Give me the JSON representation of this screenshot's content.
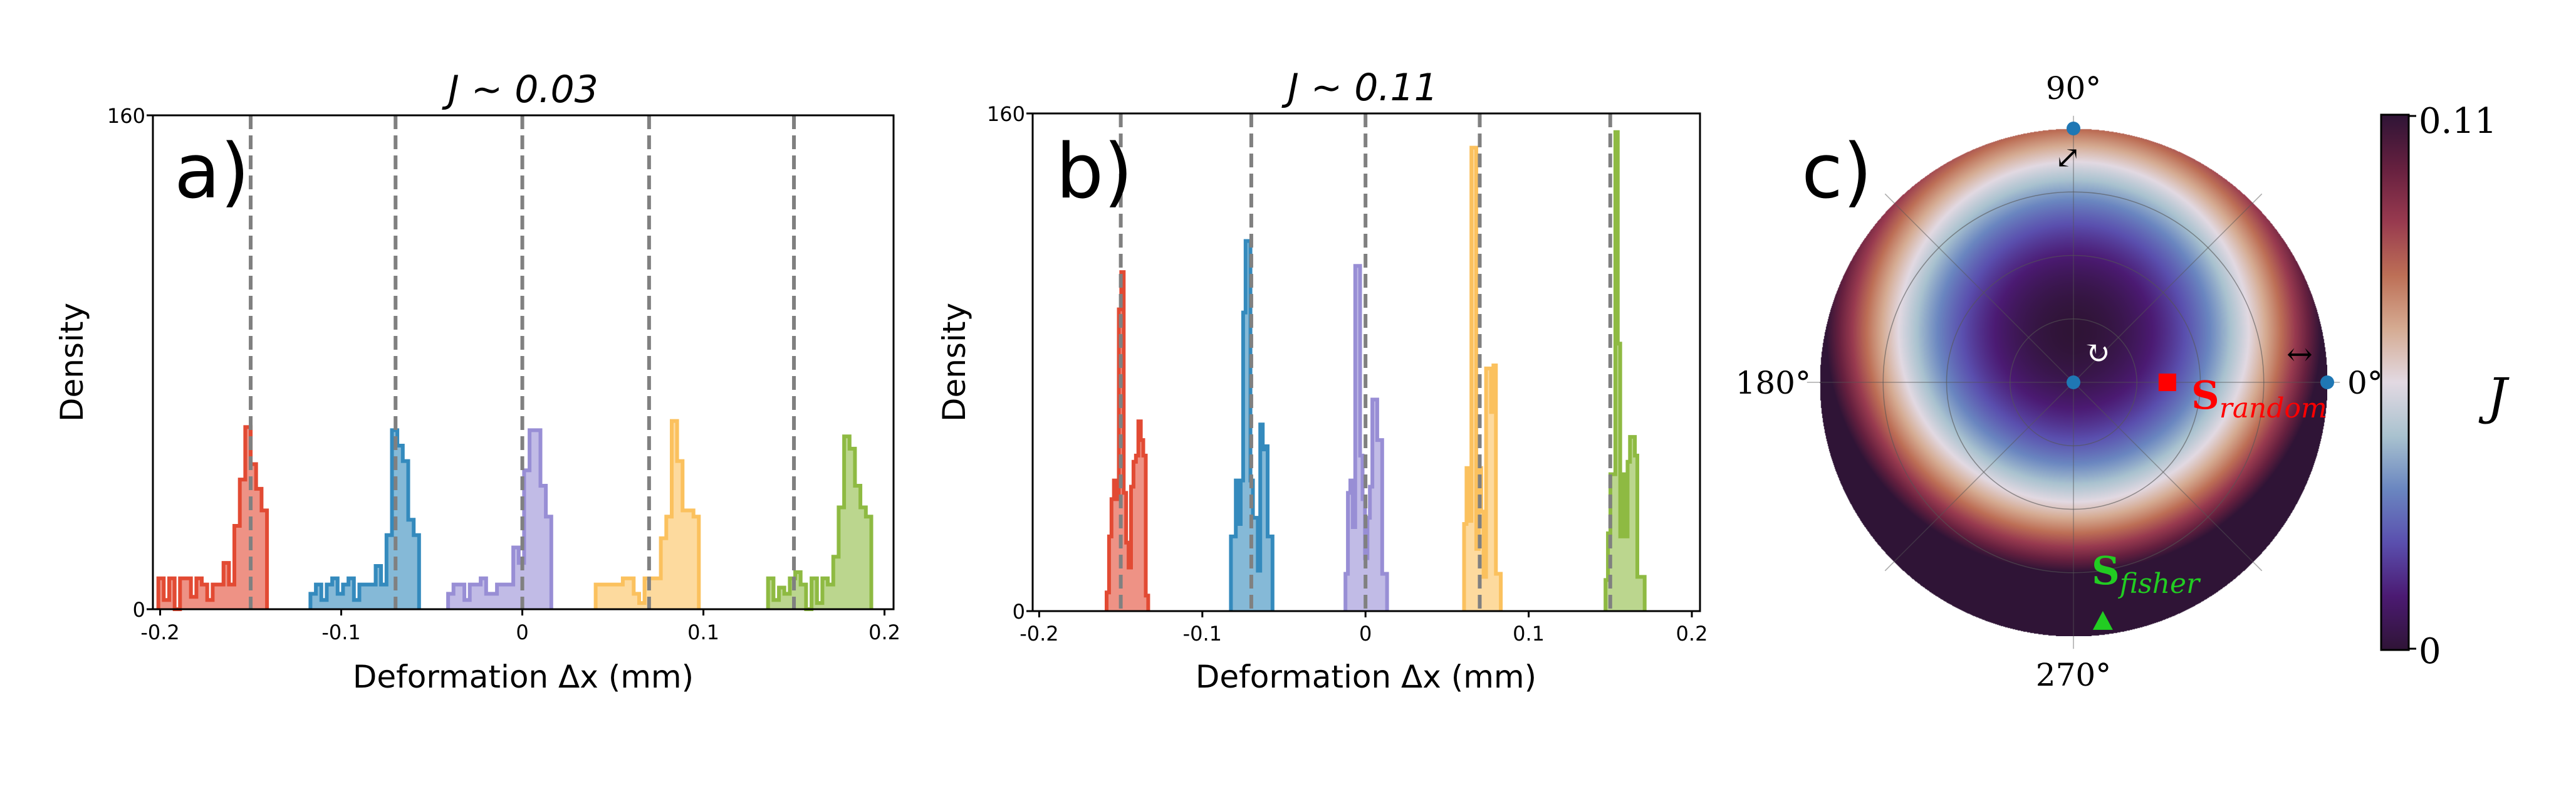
{
  "chart_data": [
    {
      "type": "histogram",
      "panel_label": "a)",
      "title": "J ∼ 0.03",
      "xlabel": "Deformation Δx (mm)",
      "ylabel": "Density",
      "xlim": [
        -0.204,
        0.205
      ],
      "ylim": [
        0,
        160
      ],
      "xticks": [
        -0.2,
        -0.1,
        0,
        0.1,
        0.2
      ],
      "xtick_labels": [
        "-0.2",
        "-0.1",
        "0",
        "0.1",
        "0.2"
      ],
      "yticks": [
        0,
        160
      ],
      "ytick_labels": [
        "0",
        "160"
      ],
      "reference_lines": [
        -0.15,
        -0.07,
        0,
        0.07,
        0.15
      ],
      "reference_line_color": "#808080",
      "bin_width": 0.003,
      "series": [
        {
          "color": "#e24a33",
          "start": -0.201,
          "heights": [
            10,
            3,
            10,
            0,
            10,
            10,
            4,
            10,
            8,
            3,
            8,
            8,
            15,
            8,
            27,
            42,
            59,
            47,
            39,
            32
          ]
        },
        {
          "color": "#348abd",
          "start": -0.117,
          "heights": [
            5,
            8,
            3,
            8,
            10,
            5,
            8,
            10,
            3,
            8,
            8,
            8,
            14,
            8,
            24,
            58,
            53,
            48,
            29,
            24
          ]
        },
        {
          "color": "#988ed5",
          "start": -0.041,
          "heights": [
            5,
            8,
            8,
            3,
            8,
            8,
            10,
            5,
            5,
            8,
            8,
            8,
            20,
            15,
            45,
            58,
            58,
            40,
            30
          ]
        },
        {
          "color": "#fbc15e",
          "start": 0.0405,
          "heights": [
            8,
            8,
            8,
            8,
            8,
            10,
            10,
            5,
            2,
            10,
            10,
            10,
            23,
            30,
            61,
            48,
            32,
            32,
            30
          ]
        },
        {
          "color": "#8eba42",
          "start": 0.1357,
          "heights": [
            10,
            3,
            7,
            5,
            10,
            12,
            8,
            0,
            10,
            2,
            10,
            8,
            17,
            33,
            56,
            52,
            40,
            33,
            30
          ]
        }
      ]
    },
    {
      "type": "histogram",
      "panel_label": "b)",
      "title": "J ∼ 0.11",
      "xlabel": "Deformation Δx (mm)",
      "ylabel": "Density",
      "xlim": [
        -0.204,
        0.205
      ],
      "ylim": [
        0,
        160
      ],
      "xticks": [
        -0.2,
        -0.1,
        0,
        0.1,
        0.2
      ],
      "xtick_labels": [
        "-0.2",
        "-0.1",
        "0",
        "0.1",
        "0.2"
      ],
      "yticks": [
        0,
        160
      ],
      "ytick_labels": [
        "0",
        "160"
      ],
      "reference_lines": [
        -0.15,
        -0.07,
        0,
        0.07,
        0.15
      ],
      "reference_line_color": "#808080",
      "bin_width": 0.0015,
      "series": [
        {
          "color": "#e24a33",
          "start": -0.1587,
          "heights": [
            6,
            24,
            36,
            42,
            36,
            97,
            109,
            38,
            22,
            14,
            40,
            48,
            50,
            61,
            55,
            50,
            5
          ]
        },
        {
          "color": "#348abd",
          "start": -0.0825,
          "heights": [
            24,
            24,
            42,
            28,
            42,
            96,
            119,
            119,
            42,
            30,
            30,
            13,
            60,
            52,
            53,
            24,
            24
          ]
        },
        {
          "color": "#988ed5",
          "start": -0.0123,
          "heights": [
            12,
            38,
            42,
            27,
            111,
            111,
            50,
            36,
            17,
            30,
            40,
            68,
            68,
            55,
            55,
            12,
            12
          ]
        },
        {
          "color": "#fbc15e",
          "start": 0.0604,
          "heights": [
            28,
            46,
            29,
            149,
            149,
            20,
            46,
            32,
            11,
            78,
            78,
            64,
            79,
            12,
            12
          ]
        },
        {
          "color": "#8eba42",
          "start": 0.1471,
          "heights": [
            10,
            25,
            44,
            44,
            154,
            86,
            24,
            44,
            24,
            48,
            56,
            56,
            50,
            11,
            11,
            11
          ]
        }
      ]
    },
    {
      "type": "heatmap",
      "projection": "polar",
      "panel_label": "c)",
      "angle_labels": {
        "deg0": "0°",
        "deg90": "90°",
        "deg180": "180°",
        "deg270": "270°"
      },
      "colorbar": {
        "label": "J",
        "min": 0,
        "max": 0.11,
        "min_label": "0",
        "max_label": "0.11",
        "colormap": "twilight_shifted"
      },
      "colormap_stops": [
        "#2f1436",
        "#4b1a72",
        "#5a4fae",
        "#6a86c0",
        "#a9c2cf",
        "#e2d9e2",
        "#d5ab92",
        "#bd6f56",
        "#983a4f",
        "#66203f",
        "#2f1436"
      ],
      "grid_rings": [
        0.25,
        0.5,
        0.75,
        1.0
      ],
      "grid_spokes_deg": [
        0,
        45,
        90,
        135,
        180,
        225,
        270,
        315
      ],
      "markers": [
        {
          "kind": "dot",
          "color": "#1f77b4",
          "theta_deg": 0,
          "r": 0
        },
        {
          "kind": "dot",
          "color": "#1f77b4",
          "theta_deg": 90,
          "r": 1
        },
        {
          "kind": "dot",
          "color": "#1f77b4",
          "theta_deg": 0,
          "r": 1
        },
        {
          "kind": "square",
          "color": "#ff0000",
          "theta_deg": 0,
          "r": 0.37,
          "label": "S",
          "sublabel": "random"
        },
        {
          "kind": "triangle",
          "color": "#22cc22",
          "theta_deg": 277,
          "r": 0.95,
          "label": "S",
          "sublabel": "fisher"
        }
      ],
      "annotations": {
        "horizontal_arrow": "↔",
        "diagonal_arrow": "⤢",
        "rotation_arrow": "↻"
      }
    }
  ]
}
